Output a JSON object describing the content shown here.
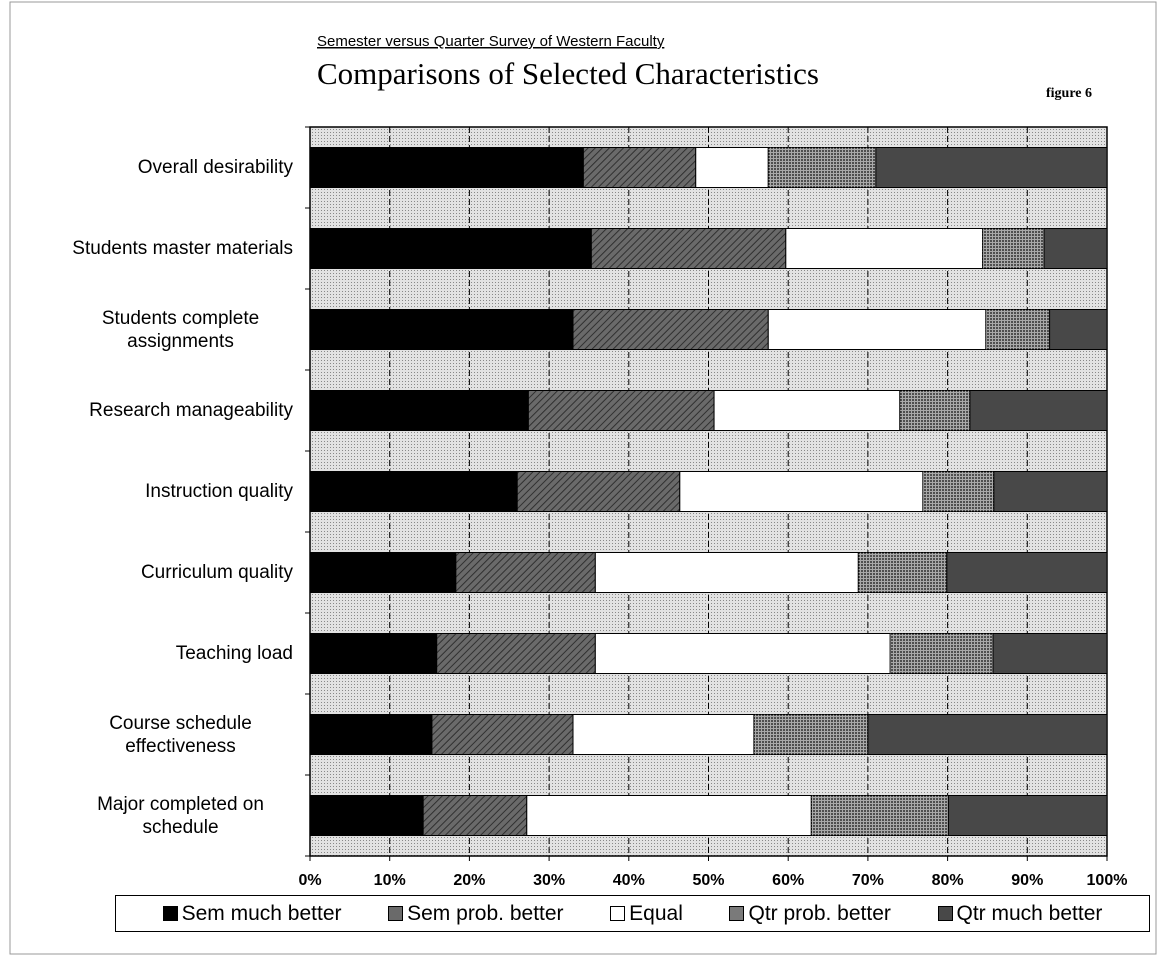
{
  "chart_data": {
    "type": "stacked-bar-horizontal",
    "subtitle": "Semester versus Quarter Survey of Western Faculty",
    "title": "Comparisons of Selected Characteristics",
    "annotation": "figure 6",
    "categories": [
      "Overall desirability",
      "Students master materials",
      "Students complete assignments",
      "Research manageability",
      "Instruction quality",
      "Curriculum quality",
      "Teaching load",
      "Course schedule effectiveness",
      "Major completed on schedule"
    ],
    "series": [
      {
        "name": "Sem much better",
        "color": "#000000",
        "values": [
          34.3,
          35.3,
          33.0,
          27.4,
          26.0,
          18.3,
          15.9,
          15.3,
          14.2
        ]
      },
      {
        "name": "Sem prob. better",
        "color": "#6a6a6a",
        "values": [
          14.1,
          24.4,
          24.5,
          23.3,
          20.4,
          17.5,
          19.9,
          17.7,
          13.0
        ]
      },
      {
        "name": "Equal",
        "color": "#ffffff",
        "values": [
          9.1,
          24.7,
          27.3,
          23.3,
          30.5,
          33.0,
          37.0,
          22.7,
          35.7
        ]
      },
      {
        "name": "Qtr prob. better",
        "color": "#7a7a7a",
        "values": [
          13.5,
          7.7,
          8.0,
          8.8,
          8.9,
          11.1,
          12.9,
          14.3,
          17.2
        ]
      },
      {
        "name": "Qtr much better",
        "color": "#484848",
        "values": [
          29.0,
          7.9,
          7.2,
          17.2,
          14.2,
          20.1,
          14.3,
          30.0,
          19.9
        ]
      }
    ],
    "xlim": [
      0,
      100
    ],
    "xticks": [
      {
        "value": 0,
        "label": "0%"
      },
      {
        "value": 10,
        "label": "10%"
      },
      {
        "value": 20,
        "label": "20%"
      },
      {
        "value": 30,
        "label": "30%"
      },
      {
        "value": 40,
        "label": "40%"
      },
      {
        "value": 50,
        "label": "50%"
      },
      {
        "value": 60,
        "label": "60%"
      },
      {
        "value": 70,
        "label": "70%"
      },
      {
        "value": 80,
        "label": "80%"
      },
      {
        "value": 90,
        "label": "90%"
      },
      {
        "value": 100,
        "label": "100%"
      }
    ],
    "grid": true,
    "legend": "bottom"
  }
}
